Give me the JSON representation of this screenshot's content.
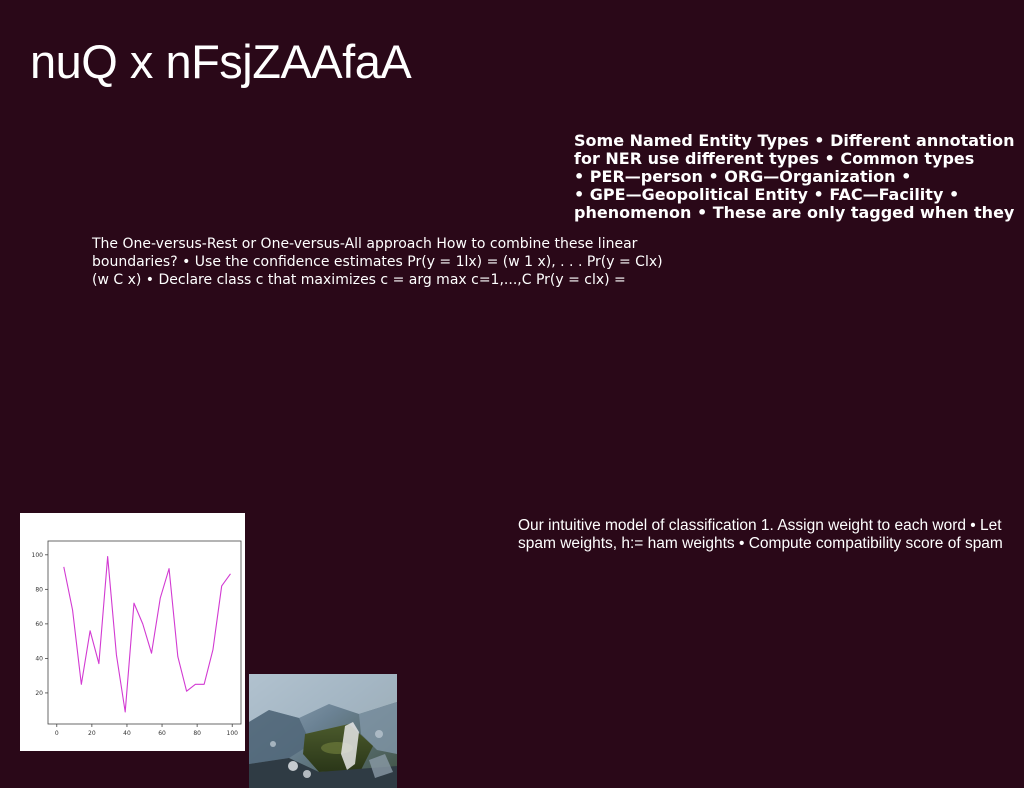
{
  "slide": {
    "title": "nuQ x nFsjZAAfaA"
  },
  "ner_box": {
    "lines": [
      "Some Named Entity Types • Different annotation",
      "for NER use different types • Common types",
      "• PER—person • ORG—Organization •",
      "• GPE—Geopolitical Entity • FAC—Facility •",
      "phenomenon • These are only tagged when they"
    ]
  },
  "ovr_box": {
    "lines": [
      "The One-versus-Rest or One-versus-All approach How to combine these linear",
      "boundaries? • Use the confidence estimates Pr(y = 1lx) = (w 1 x), . . . Pr(y = Clx)",
      "(w C x) • Declare class c that maximizes c = arg max c=1,...,C Pr(y = clx) ="
    ]
  },
  "intuitive_box": {
    "lines": [
      "Our intuitive model of classification 1. Assign weight to each word • Let",
      "spam weights, h:= ham weights • Compute compatibility score of spam"
    ]
  },
  "chart_data": {
    "type": "line",
    "title": "",
    "xlabel": "",
    "ylabel": "",
    "xlim": [
      -5,
      105
    ],
    "ylim": [
      2,
      108
    ],
    "xticks": [
      0,
      20,
      40,
      60,
      80,
      100
    ],
    "yticks": [
      20,
      40,
      60,
      80,
      100
    ],
    "grid": false,
    "line_color": "#d23ad2",
    "series": [
      {
        "x": [
          4,
          9,
          14,
          19,
          24,
          29,
          34,
          39,
          44,
          49,
          54,
          59,
          64,
          69,
          74,
          79,
          84,
          89,
          94,
          99
        ],
        "values": [
          93,
          68,
          25,
          56,
          37,
          99,
          42,
          9,
          72,
          60,
          43,
          75,
          92,
          41,
          21,
          25,
          25,
          45,
          82,
          89
        ]
      }
    ]
  },
  "photo": {
    "description_icon": "landscape-photo"
  }
}
